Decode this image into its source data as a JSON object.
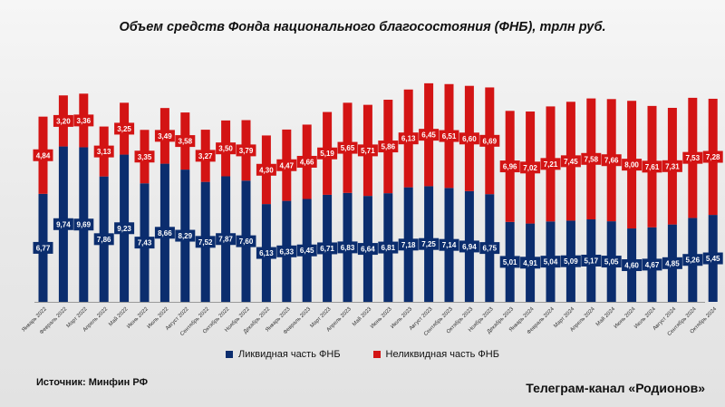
{
  "chart_data": {
    "type": "bar",
    "stacked": true,
    "title": "Объем средств Фонда национального благосостояния (ФНБ), трлн руб.",
    "categories": [
      "Январь 2022",
      "Февраль 2022",
      "Март 2022",
      "Апрель 2022",
      "Май 2022",
      "Июнь 2022",
      "Июль 2022",
      "Август 2022",
      "Сентябрь 2022",
      "Октябрь 2022",
      "Ноябрь 2022",
      "Декабрь 2022",
      "Январь 2023",
      "Февраль 2023",
      "Март 2023",
      "Апрель 2023",
      "Май 2023",
      "Июнь 2023",
      "Июль 2023",
      "Август 2023",
      "Сентябрь 2023",
      "Октябрь 2023",
      "Ноябрь 2023",
      "Декабрь 2023",
      "Январь 2024",
      "Февраль 2024",
      "Март 2024",
      "Апрель 2024",
      "Май 2024",
      "Июнь 2024",
      "Июль 2024",
      "Август 2024",
      "Сентябрь 2024",
      "Октябрь 2024"
    ],
    "series": [
      {
        "name": "Ликвидная часть ФНБ",
        "color": "#0b2d6e",
        "values": [
          6.77,
          9.74,
          9.69,
          7.86,
          9.23,
          7.43,
          8.66,
          8.29,
          7.52,
          7.87,
          7.6,
          6.13,
          6.33,
          6.45,
          6.71,
          6.83,
          6.64,
          6.81,
          7.18,
          7.25,
          7.14,
          6.94,
          6.75,
          5.01,
          4.91,
          5.04,
          5.09,
          5.17,
          5.05,
          4.6,
          4.67,
          4.85,
          5.26,
          5.45
        ]
      },
      {
        "name": "Неликвидная часть ФНБ",
        "color": "#d31414",
        "values": [
          4.84,
          3.2,
          3.36,
          3.13,
          3.25,
          3.35,
          3.49,
          3.58,
          3.27,
          3.5,
          3.79,
          4.3,
          4.47,
          4.66,
          5.19,
          5.65,
          5.71,
          5.86,
          6.13,
          6.45,
          6.51,
          6.6,
          6.69,
          6.96,
          7.02,
          7.21,
          7.45,
          7.58,
          7.66,
          8.0,
          7.61,
          7.31,
          7.53,
          7.28
        ]
      }
    ],
    "ylim": [
      0,
      13.7
    ],
    "grid": false,
    "legend": "bottom"
  },
  "source_text": "Источник: Минфин РФ",
  "channel_text": "Телеграм-канал «Родионов»"
}
